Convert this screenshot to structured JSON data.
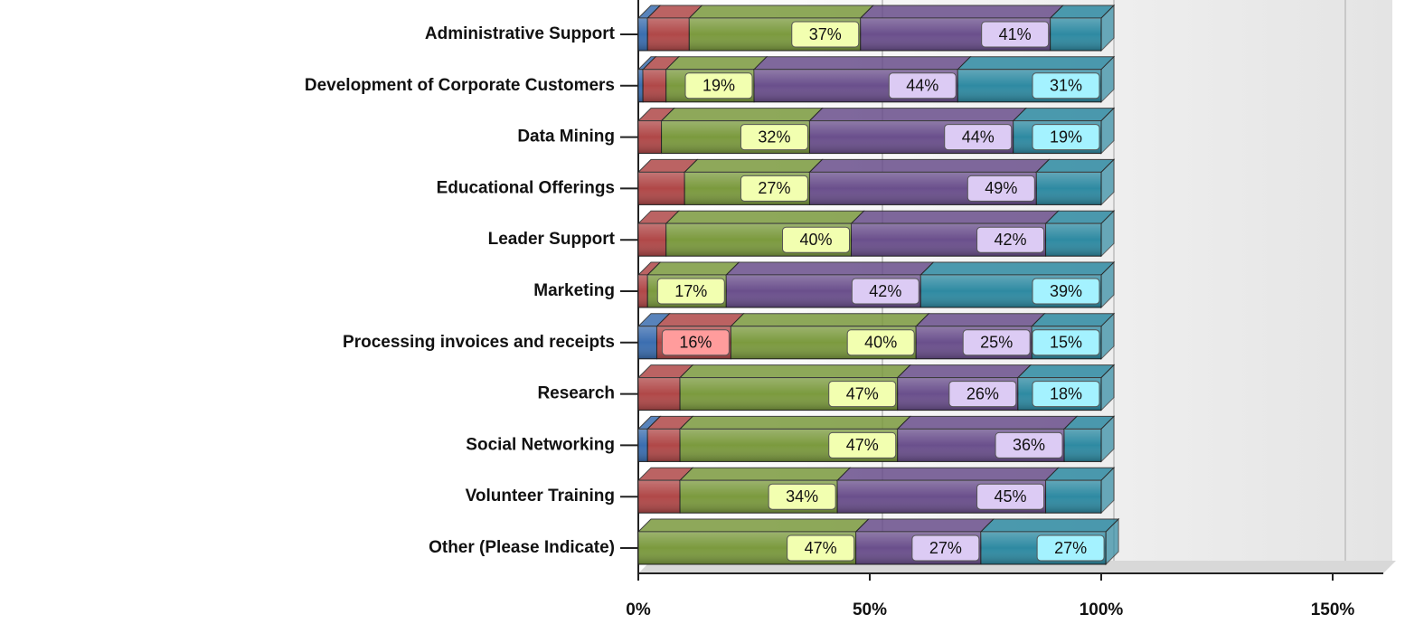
{
  "chart_data": {
    "type": "stacked-bar-3d",
    "categories": [
      "Administrative Support",
      "Development of Corporate Customers",
      "Data Mining",
      "Educational Offerings",
      "Leader Support",
      "Marketing",
      "Processing invoices and receipts",
      "Research",
      "Social Networking",
      "Volunteer Training",
      "Other (Please Indicate)"
    ],
    "series": [
      {
        "color": "#3b6eb0",
        "values": [
          2,
          1,
          0,
          0,
          0,
          0,
          4,
          0,
          2,
          0,
          0
        ],
        "value_labels": [
          null,
          null,
          null,
          null,
          null,
          null,
          null,
          null,
          null,
          null,
          null
        ],
        "label_color": "#a8c8ff"
      },
      {
        "color": "#b04848",
        "values": [
          9,
          5,
          5,
          10,
          6,
          2,
          16,
          9,
          7,
          9,
          0
        ],
        "value_labels": [
          null,
          null,
          null,
          null,
          null,
          null,
          "16%",
          null,
          null,
          null,
          null
        ],
        "label_color": "#ff9c9c"
      },
      {
        "color": "#7b9a3e",
        "values": [
          37,
          19,
          32,
          27,
          40,
          17,
          40,
          47,
          47,
          34,
          47
        ],
        "value_labels": [
          "37%",
          "19%",
          "32%",
          "27%",
          "40%",
          "17%",
          "40%",
          "47%",
          "47%",
          "34%",
          "47%"
        ],
        "label_color": "#f2ffb0"
      },
      {
        "color": "#6a4f8c",
        "values": [
          41,
          44,
          44,
          49,
          42,
          42,
          25,
          26,
          36,
          45,
          27
        ],
        "value_labels": [
          "41%",
          "44%",
          "44%",
          "49%",
          "42%",
          "42%",
          "25%",
          "26%",
          "36%",
          "45%",
          "27%"
        ],
        "label_color": "#dccbf4"
      },
      {
        "color": "#2e8aa2",
        "values": [
          11,
          31,
          19,
          14,
          12,
          39,
          15,
          18,
          8,
          12,
          27
        ],
        "value_labels": [
          null,
          "31%",
          "19%",
          null,
          null,
          "39%",
          "15%",
          "18%",
          null,
          null,
          "27%"
        ],
        "label_color": "#a4f2ff"
      }
    ],
    "xlim": [
      0,
      163
    ],
    "xticks": [
      {
        "value": 0,
        "label": "0%"
      },
      {
        "value": 50,
        "label": "50%"
      },
      {
        "value": 100,
        "label": "100%"
      },
      {
        "value": 150,
        "label": "150%"
      }
    ],
    "grid": true
  }
}
